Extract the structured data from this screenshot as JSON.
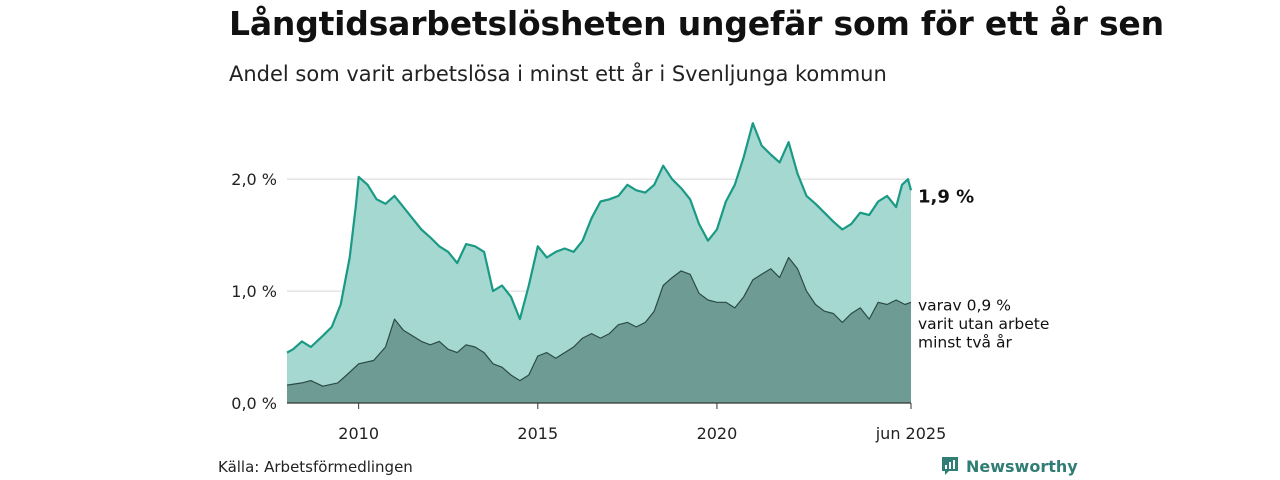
{
  "title": "Långtidsarbetslösheten ungefär som för ett år sen",
  "subtitle": "Andel som varit arbetslösa i minst ett år i Svenljunga kommun",
  "source": "Källa: Arbetsförmedlingen",
  "brand": {
    "name": "Newsworthy",
    "icon": "newsworthy-logo-icon"
  },
  "colors": {
    "area_total": "#a6d8d2",
    "line_total": "#1a9a85",
    "area_twoyear": "#6e9c94",
    "line_twoyear": "#2c4a45",
    "grid": "#d6d6d6"
  },
  "chart_data": {
    "type": "area",
    "x_start": "2008-01",
    "x_end": "2025-06",
    "frequency": "monthly (points read from chart, approximate)",
    "ylim": [
      0,
      2.6
    ],
    "y_ticks": [
      {
        "value": 0,
        "label": "0,0 %"
      },
      {
        "value": 1,
        "label": "1,0 %"
      },
      {
        "value": 2,
        "label": "2,0 %"
      }
    ],
    "x_ticks": [
      {
        "date": "2010-01",
        "label": "2010"
      },
      {
        "date": "2015-01",
        "label": "2015"
      },
      {
        "date": "2020-01",
        "label": "2020"
      },
      {
        "date": "2025-06",
        "label": "jun 2025"
      }
    ],
    "grid": "horizontal",
    "series": [
      {
        "end_label": "1,9 %",
        "points": [
          [
            "2008-01",
            0.45
          ],
          [
            "2008-03",
            0.48
          ],
          [
            "2008-06",
            0.55
          ],
          [
            "2008-09",
            0.5
          ],
          [
            "2009-01",
            0.6
          ],
          [
            "2009-04",
            0.68
          ],
          [
            "2009-07",
            0.88
          ],
          [
            "2009-10",
            1.3
          ],
          [
            "2009-12",
            1.75
          ],
          [
            "2010-01",
            2.02
          ],
          [
            "2010-04",
            1.95
          ],
          [
            "2010-07",
            1.82
          ],
          [
            "2010-10",
            1.78
          ],
          [
            "2011-01",
            1.85
          ],
          [
            "2011-04",
            1.75
          ],
          [
            "2011-07",
            1.65
          ],
          [
            "2011-10",
            1.55
          ],
          [
            "2012-01",
            1.48
          ],
          [
            "2012-04",
            1.4
          ],
          [
            "2012-07",
            1.35
          ],
          [
            "2012-10",
            1.25
          ],
          [
            "2013-01",
            1.42
          ],
          [
            "2013-04",
            1.4
          ],
          [
            "2013-07",
            1.35
          ],
          [
            "2013-10",
            1.0
          ],
          [
            "2014-01",
            1.05
          ],
          [
            "2014-04",
            0.95
          ],
          [
            "2014-07",
            0.75
          ],
          [
            "2014-10",
            1.05
          ],
          [
            "2015-01",
            1.4
          ],
          [
            "2015-04",
            1.3
          ],
          [
            "2015-07",
            1.35
          ],
          [
            "2015-10",
            1.38
          ],
          [
            "2016-01",
            1.35
          ],
          [
            "2016-04",
            1.45
          ],
          [
            "2016-07",
            1.65
          ],
          [
            "2016-10",
            1.8
          ],
          [
            "2017-01",
            1.82
          ],
          [
            "2017-04",
            1.85
          ],
          [
            "2017-07",
            1.95
          ],
          [
            "2017-10",
            1.9
          ],
          [
            "2018-01",
            1.88
          ],
          [
            "2018-04",
            1.95
          ],
          [
            "2018-07",
            2.12
          ],
          [
            "2018-10",
            2.0
          ],
          [
            "2019-01",
            1.92
          ],
          [
            "2019-04",
            1.82
          ],
          [
            "2019-07",
            1.6
          ],
          [
            "2019-10",
            1.45
          ],
          [
            "2020-01",
            1.55
          ],
          [
            "2020-04",
            1.8
          ],
          [
            "2020-07",
            1.95
          ],
          [
            "2020-10",
            2.2
          ],
          [
            "2021-01",
            2.5
          ],
          [
            "2021-04",
            2.3
          ],
          [
            "2021-07",
            2.22
          ],
          [
            "2021-10",
            2.15
          ],
          [
            "2022-01",
            2.33
          ],
          [
            "2022-04",
            2.05
          ],
          [
            "2022-07",
            1.85
          ],
          [
            "2022-10",
            1.78
          ],
          [
            "2023-01",
            1.7
          ],
          [
            "2023-04",
            1.62
          ],
          [
            "2023-07",
            1.55
          ],
          [
            "2023-10",
            1.6
          ],
          [
            "2024-01",
            1.7
          ],
          [
            "2024-04",
            1.68
          ],
          [
            "2024-07",
            1.8
          ],
          [
            "2024-10",
            1.85
          ],
          [
            "2025-01",
            1.75
          ],
          [
            "2025-03",
            1.95
          ],
          [
            "2025-05",
            2.0
          ],
          [
            "2025-06",
            1.9
          ]
        ]
      },
      {
        "end_label": "varav 0,9 %",
        "end_label_lines": [
          "varav 0,9 %",
          "varit utan arbete",
          "minst två år"
        ],
        "points": [
          [
            "2008-01",
            0.16
          ],
          [
            "2008-06",
            0.18
          ],
          [
            "2008-09",
            0.2
          ],
          [
            "2009-01",
            0.15
          ],
          [
            "2009-06",
            0.18
          ],
          [
            "2009-09",
            0.25
          ],
          [
            "2010-01",
            0.35
          ],
          [
            "2010-06",
            0.38
          ],
          [
            "2010-10",
            0.5
          ],
          [
            "2011-01",
            0.75
          ],
          [
            "2011-04",
            0.65
          ],
          [
            "2011-07",
            0.6
          ],
          [
            "2011-10",
            0.55
          ],
          [
            "2012-01",
            0.52
          ],
          [
            "2012-04",
            0.55
          ],
          [
            "2012-07",
            0.48
          ],
          [
            "2012-10",
            0.45
          ],
          [
            "2013-01",
            0.52
          ],
          [
            "2013-04",
            0.5
          ],
          [
            "2013-07",
            0.45
          ],
          [
            "2013-10",
            0.35
          ],
          [
            "2014-01",
            0.32
          ],
          [
            "2014-04",
            0.25
          ],
          [
            "2014-07",
            0.2
          ],
          [
            "2014-10",
            0.25
          ],
          [
            "2015-01",
            0.42
          ],
          [
            "2015-04",
            0.45
          ],
          [
            "2015-07",
            0.4
          ],
          [
            "2015-10",
            0.45
          ],
          [
            "2016-01",
            0.5
          ],
          [
            "2016-04",
            0.58
          ],
          [
            "2016-07",
            0.62
          ],
          [
            "2016-10",
            0.58
          ],
          [
            "2017-01",
            0.62
          ],
          [
            "2017-04",
            0.7
          ],
          [
            "2017-07",
            0.72
          ],
          [
            "2017-10",
            0.68
          ],
          [
            "2018-01",
            0.72
          ],
          [
            "2018-04",
            0.82
          ],
          [
            "2018-07",
            1.05
          ],
          [
            "2018-10",
            1.12
          ],
          [
            "2019-01",
            1.18
          ],
          [
            "2019-04",
            1.15
          ],
          [
            "2019-07",
            0.98
          ],
          [
            "2019-10",
            0.92
          ],
          [
            "2020-01",
            0.9
          ],
          [
            "2020-04",
            0.9
          ],
          [
            "2020-07",
            0.85
          ],
          [
            "2020-10",
            0.95
          ],
          [
            "2021-01",
            1.1
          ],
          [
            "2021-04",
            1.15
          ],
          [
            "2021-07",
            1.2
          ],
          [
            "2021-10",
            1.12
          ],
          [
            "2022-01",
            1.3
          ],
          [
            "2022-04",
            1.2
          ],
          [
            "2022-07",
            1.0
          ],
          [
            "2022-10",
            0.88
          ],
          [
            "2023-01",
            0.82
          ],
          [
            "2023-04",
            0.8
          ],
          [
            "2023-07",
            0.72
          ],
          [
            "2023-10",
            0.8
          ],
          [
            "2024-01",
            0.85
          ],
          [
            "2024-04",
            0.75
          ],
          [
            "2024-07",
            0.9
          ],
          [
            "2024-10",
            0.88
          ],
          [
            "2025-01",
            0.92
          ],
          [
            "2025-04",
            0.88
          ],
          [
            "2025-06",
            0.9
          ]
        ]
      }
    ]
  }
}
